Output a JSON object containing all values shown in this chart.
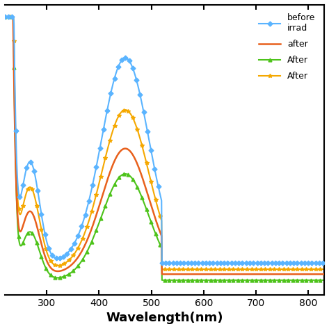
{
  "title": "",
  "xlabel": "Wavelength(nm)",
  "ylabel": "",
  "xlim": [
    220,
    830
  ],
  "ylim": [
    -0.05,
    1.15
  ],
  "xticks": [
    300,
    400,
    500,
    600,
    700,
    800
  ],
  "legend_labels": [
    "before\nirrad",
    "after",
    "After",
    "After"
  ],
  "background_color": "#ffffff",
  "series": {
    "blue": {
      "color": "#5ab4ff",
      "marker": "D",
      "markersize": 3.5,
      "linewidth": 1.5
    },
    "orange": {
      "color": "#e8601c",
      "marker": null,
      "markersize": 0,
      "linewidth": 1.8
    },
    "green": {
      "color": "#4dc31a",
      "marker": "^",
      "markersize": 3.5,
      "linewidth": 1.5
    },
    "yellow": {
      "color": "#f5a800",
      "marker": "*",
      "markersize": 4,
      "linewidth": 1.5
    }
  }
}
